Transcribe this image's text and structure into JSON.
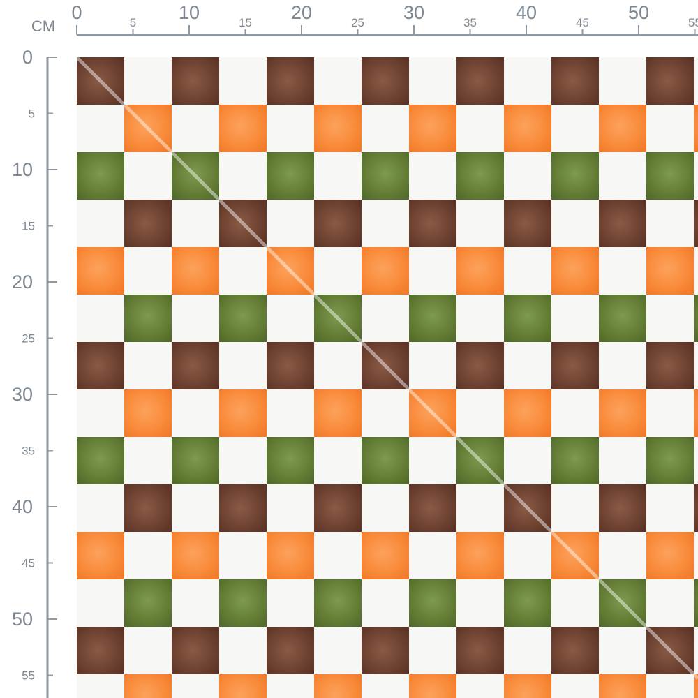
{
  "ruler": {
    "unit": "CM",
    "ticks": [
      0,
      5,
      10,
      15,
      20,
      25,
      30,
      35,
      40,
      45,
      50,
      55
    ]
  }
}
